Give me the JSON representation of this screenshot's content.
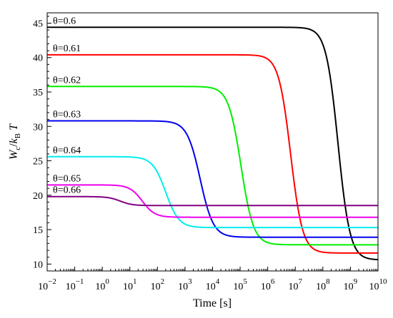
{
  "chart_data": {
    "type": "line",
    "xlabel": "Time [s]",
    "ylabel": "W_c/k_B T",
    "xscale": "log",
    "xlim": [
      -2,
      10
    ],
    "ylim": [
      9,
      46.5
    ],
    "grid": false,
    "x_ticks": [
      {
        "exp": -2,
        "base": "10",
        "power": "−2"
      },
      {
        "exp": -1,
        "base": "10",
        "power": "−1"
      },
      {
        "exp": 0,
        "base": "10",
        "power": "0"
      },
      {
        "exp": 1,
        "base": "10",
        "power": "1"
      },
      {
        "exp": 2,
        "base": "10",
        "power": "2"
      },
      {
        "exp": 3,
        "base": "10",
        "power": "3"
      },
      {
        "exp": 4,
        "base": "10",
        "power": "4"
      },
      {
        "exp": 5,
        "base": "10",
        "power": "5"
      },
      {
        "exp": 6,
        "base": "10",
        "power": "6"
      },
      {
        "exp": 7,
        "base": "10",
        "power": "7"
      },
      {
        "exp": 8,
        "base": "10",
        "power": "8"
      },
      {
        "exp": 9,
        "base": "10",
        "power": "9"
      },
      {
        "exp": 10,
        "base": "10",
        "power": "10"
      }
    ],
    "y_ticks": [
      10,
      15,
      20,
      25,
      30,
      35,
      40,
      45
    ],
    "series": [
      {
        "name": "θ=0.6",
        "color": "#000000",
        "start": 44.4,
        "end": 10.6,
        "midpoint_log10_time": 8.55,
        "steepness": 4.6
      },
      {
        "name": "θ=0.61",
        "color": "#ff0000",
        "start": 40.4,
        "end": 11.6,
        "midpoint_log10_time": 6.83,
        "steepness": 4.6
      },
      {
        "name": "θ=0.62",
        "color": "#00ee00",
        "start": 35.8,
        "end": 12.8,
        "midpoint_log10_time": 5.03,
        "steepness": 4.4
      },
      {
        "name": "θ=0.63",
        "color": "#0000ee",
        "start": 30.8,
        "end": 13.9,
        "midpoint_log10_time": 3.55,
        "steepness": 4.2
      },
      {
        "name": "θ=0.64",
        "color": "#00eeee",
        "start": 25.6,
        "end": 15.3,
        "midpoint_log10_time": 2.3,
        "steepness": 4.2
      },
      {
        "name": "θ=0.65",
        "color": "#ee00ee",
        "start": 21.5,
        "end": 16.8,
        "midpoint_log10_time": 1.45,
        "steepness": 4.4
      },
      {
        "name": "θ=0.66",
        "color": "#800080",
        "start": 19.8,
        "end": 18.5,
        "midpoint_log10_time": 0.65,
        "steepness": 4.6
      }
    ]
  }
}
